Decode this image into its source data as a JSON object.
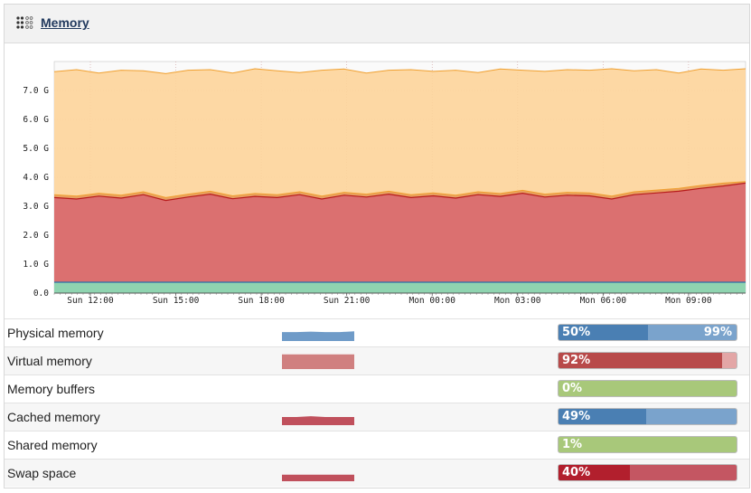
{
  "widget": {
    "title": "Memory",
    "icon": "grid-dots-icon"
  },
  "chart_data": {
    "type": "area",
    "x_tick_labels": [
      "Sun 12:00",
      "Sun 15:00",
      "Sun 18:00",
      "Sun 21:00",
      "Mon 00:00",
      "Mon 03:00",
      "Mon 06:00",
      "Mon 09:00"
    ],
    "y_tick_labels": [
      "0.0",
      "1.0 G",
      "2.0 G",
      "3.0 G",
      "4.0 G",
      "5.0 G",
      "6.0 G",
      "7.0 G"
    ],
    "ylim": [
      0,
      8.0
    ],
    "series_colors": {
      "total": "#fdd49a",
      "total_line": "#f0a030",
      "used": "#db7070",
      "used_line": "#b71c1c",
      "upper": "#e8a060",
      "swap": "#8fd4b0",
      "swap_line": "#2a6fa8"
    },
    "series": [
      {
        "values": [
          7.65,
          7.72,
          7.6,
          7.7,
          7.68,
          7.58,
          7.7,
          7.72,
          7.6,
          7.75,
          7.68,
          7.62,
          7.7,
          7.74,
          7.6,
          7.7,
          7.72,
          7.66,
          7.7,
          7.62,
          7.74,
          7.7,
          7.66,
          7.72,
          7.7,
          7.75,
          7.68,
          7.72,
          7.6,
          7.74,
          7.7,
          7.75
        ]
      },
      {
        "values": [
          3.4,
          3.35,
          3.45,
          3.38,
          3.5,
          3.3,
          3.42,
          3.52,
          3.36,
          3.44,
          3.4,
          3.5,
          3.35,
          3.48,
          3.42,
          3.52,
          3.4,
          3.46,
          3.38,
          3.5,
          3.44,
          3.55,
          3.42,
          3.48,
          3.46,
          3.35,
          3.5,
          3.56,
          3.62,
          3.72,
          3.8,
          3.85
        ]
      },
      {
        "values": [
          3.3,
          3.25,
          3.35,
          3.28,
          3.4,
          3.2,
          3.32,
          3.42,
          3.26,
          3.34,
          3.3,
          3.4,
          3.25,
          3.38,
          3.32,
          3.42,
          3.3,
          3.36,
          3.28,
          3.4,
          3.34,
          3.45,
          3.32,
          3.38,
          3.36,
          3.25,
          3.4,
          3.46,
          3.52,
          3.62,
          3.7,
          3.8
        ]
      },
      {
        "values": [
          0.02,
          0.02,
          0.02,
          0.02,
          0.02,
          0.02,
          0.02,
          0.02,
          0.02,
          0.02,
          0.02,
          0.02,
          0.02,
          0.02,
          0.02,
          0.02,
          0.02,
          0.02,
          0.02,
          0.02,
          0.02,
          0.02,
          0.02,
          0.02,
          0.02,
          0.02,
          0.02,
          0.02,
          0.02,
          0.02,
          0.02,
          0.02
        ]
      }
    ]
  },
  "rows": [
    {
      "label": "Physical memory",
      "spark_color": "#6f9bc8",
      "spark": [
        0.55,
        0.55,
        0.58,
        0.55,
        0.55,
        0.6
      ],
      "bar_bg": "#7aa3cc",
      "fill_color": "#4a7fb3",
      "fill": 0.5,
      "left_text": "50%",
      "right_text": "99%"
    },
    {
      "label": "Virtual memory",
      "spark_color": "#d08080",
      "spark": [
        0.9,
        0.9,
        0.9,
        0.9,
        0.9,
        0.9
      ],
      "bar_bg": "#e3a6a6",
      "fill_color": "#b84a4a",
      "fill": 0.92,
      "left_text": "92%",
      "right_text": ""
    },
    {
      "label": "Memory buffers",
      "spark_color": "#cccccc",
      "spark": [],
      "bar_bg": "#a8c87a",
      "fill_color": "#a8c87a",
      "fill": 0.0,
      "left_text": "0%",
      "right_text": ""
    },
    {
      "label": "Cached memory",
      "spark_color": "#c0505c",
      "spark": [
        0.5,
        0.5,
        0.55,
        0.5,
        0.5,
        0.5
      ],
      "bar_bg": "#7aa3cc",
      "fill_color": "#4a7fb3",
      "fill": 0.49,
      "left_text": "49%",
      "right_text": ""
    },
    {
      "label": "Shared memory",
      "spark_color": "#cccccc",
      "spark": [],
      "bar_bg": "#a8c87a",
      "fill_color": "#a8c87a",
      "fill": 0.01,
      "left_text": "1%",
      "right_text": ""
    },
    {
      "label": "Swap space",
      "spark_color": "#c0505c",
      "spark": [
        0.4,
        0.4,
        0.4,
        0.4,
        0.4,
        0.4
      ],
      "bar_bg": "#c45662",
      "fill_color": "#b21f2d",
      "fill": 0.4,
      "left_text": "40%",
      "right_text": ""
    }
  ]
}
